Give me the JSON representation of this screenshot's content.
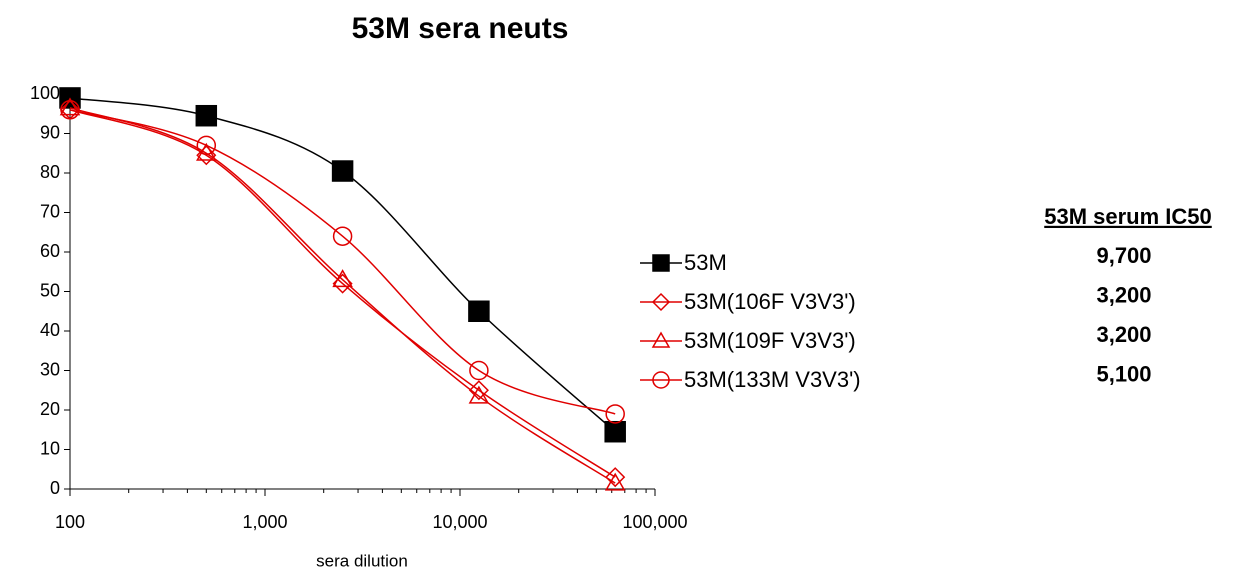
{
  "chart_data": {
    "type": "line",
    "title": "53M sera neuts",
    "x_label": "sera dilution",
    "x": [
      100,
      500,
      2500,
      12500,
      62500
    ],
    "xlim": [
      100,
      100000
    ],
    "xticks": [
      100,
      {
        "value": 1000,
        "label": "1,000"
      },
      {
        "value": 10000,
        "label": "10,000"
      },
      {
        "value": 100000,
        "label": "100,000"
      }
    ],
    "xscale": "log",
    "ylim": [
      0,
      100
    ],
    "yticks": [
      0,
      10,
      20,
      30,
      40,
      50,
      60,
      70,
      80,
      90,
      100
    ],
    "grid": false,
    "legend": "right",
    "series": [
      {
        "name": "53M",
        "color": "#000000",
        "marker": "square",
        "values": [
          99,
          94.5,
          80.5,
          45,
          14.5
        ]
      },
      {
        "name": "53M(106F V3V3')",
        "color": "#e00000",
        "marker": "diamond",
        "values": [
          96,
          84.5,
          52,
          25,
          3
        ]
      },
      {
        "name": "53M(109F V3V3')",
        "color": "#e00000",
        "marker": "triangle",
        "values": [
          96.5,
          85,
          53,
          23.5,
          1.5
        ]
      },
      {
        "name": "53M(133M V3V3')",
        "color": "#e00000",
        "marker": "circle",
        "values": [
          96,
          87,
          64,
          30,
          19
        ]
      }
    ]
  },
  "ic50_table": {
    "header": "53M serum IC50",
    "values": [
      "9,700",
      "3,200",
      "3,200",
      "5,100"
    ]
  }
}
